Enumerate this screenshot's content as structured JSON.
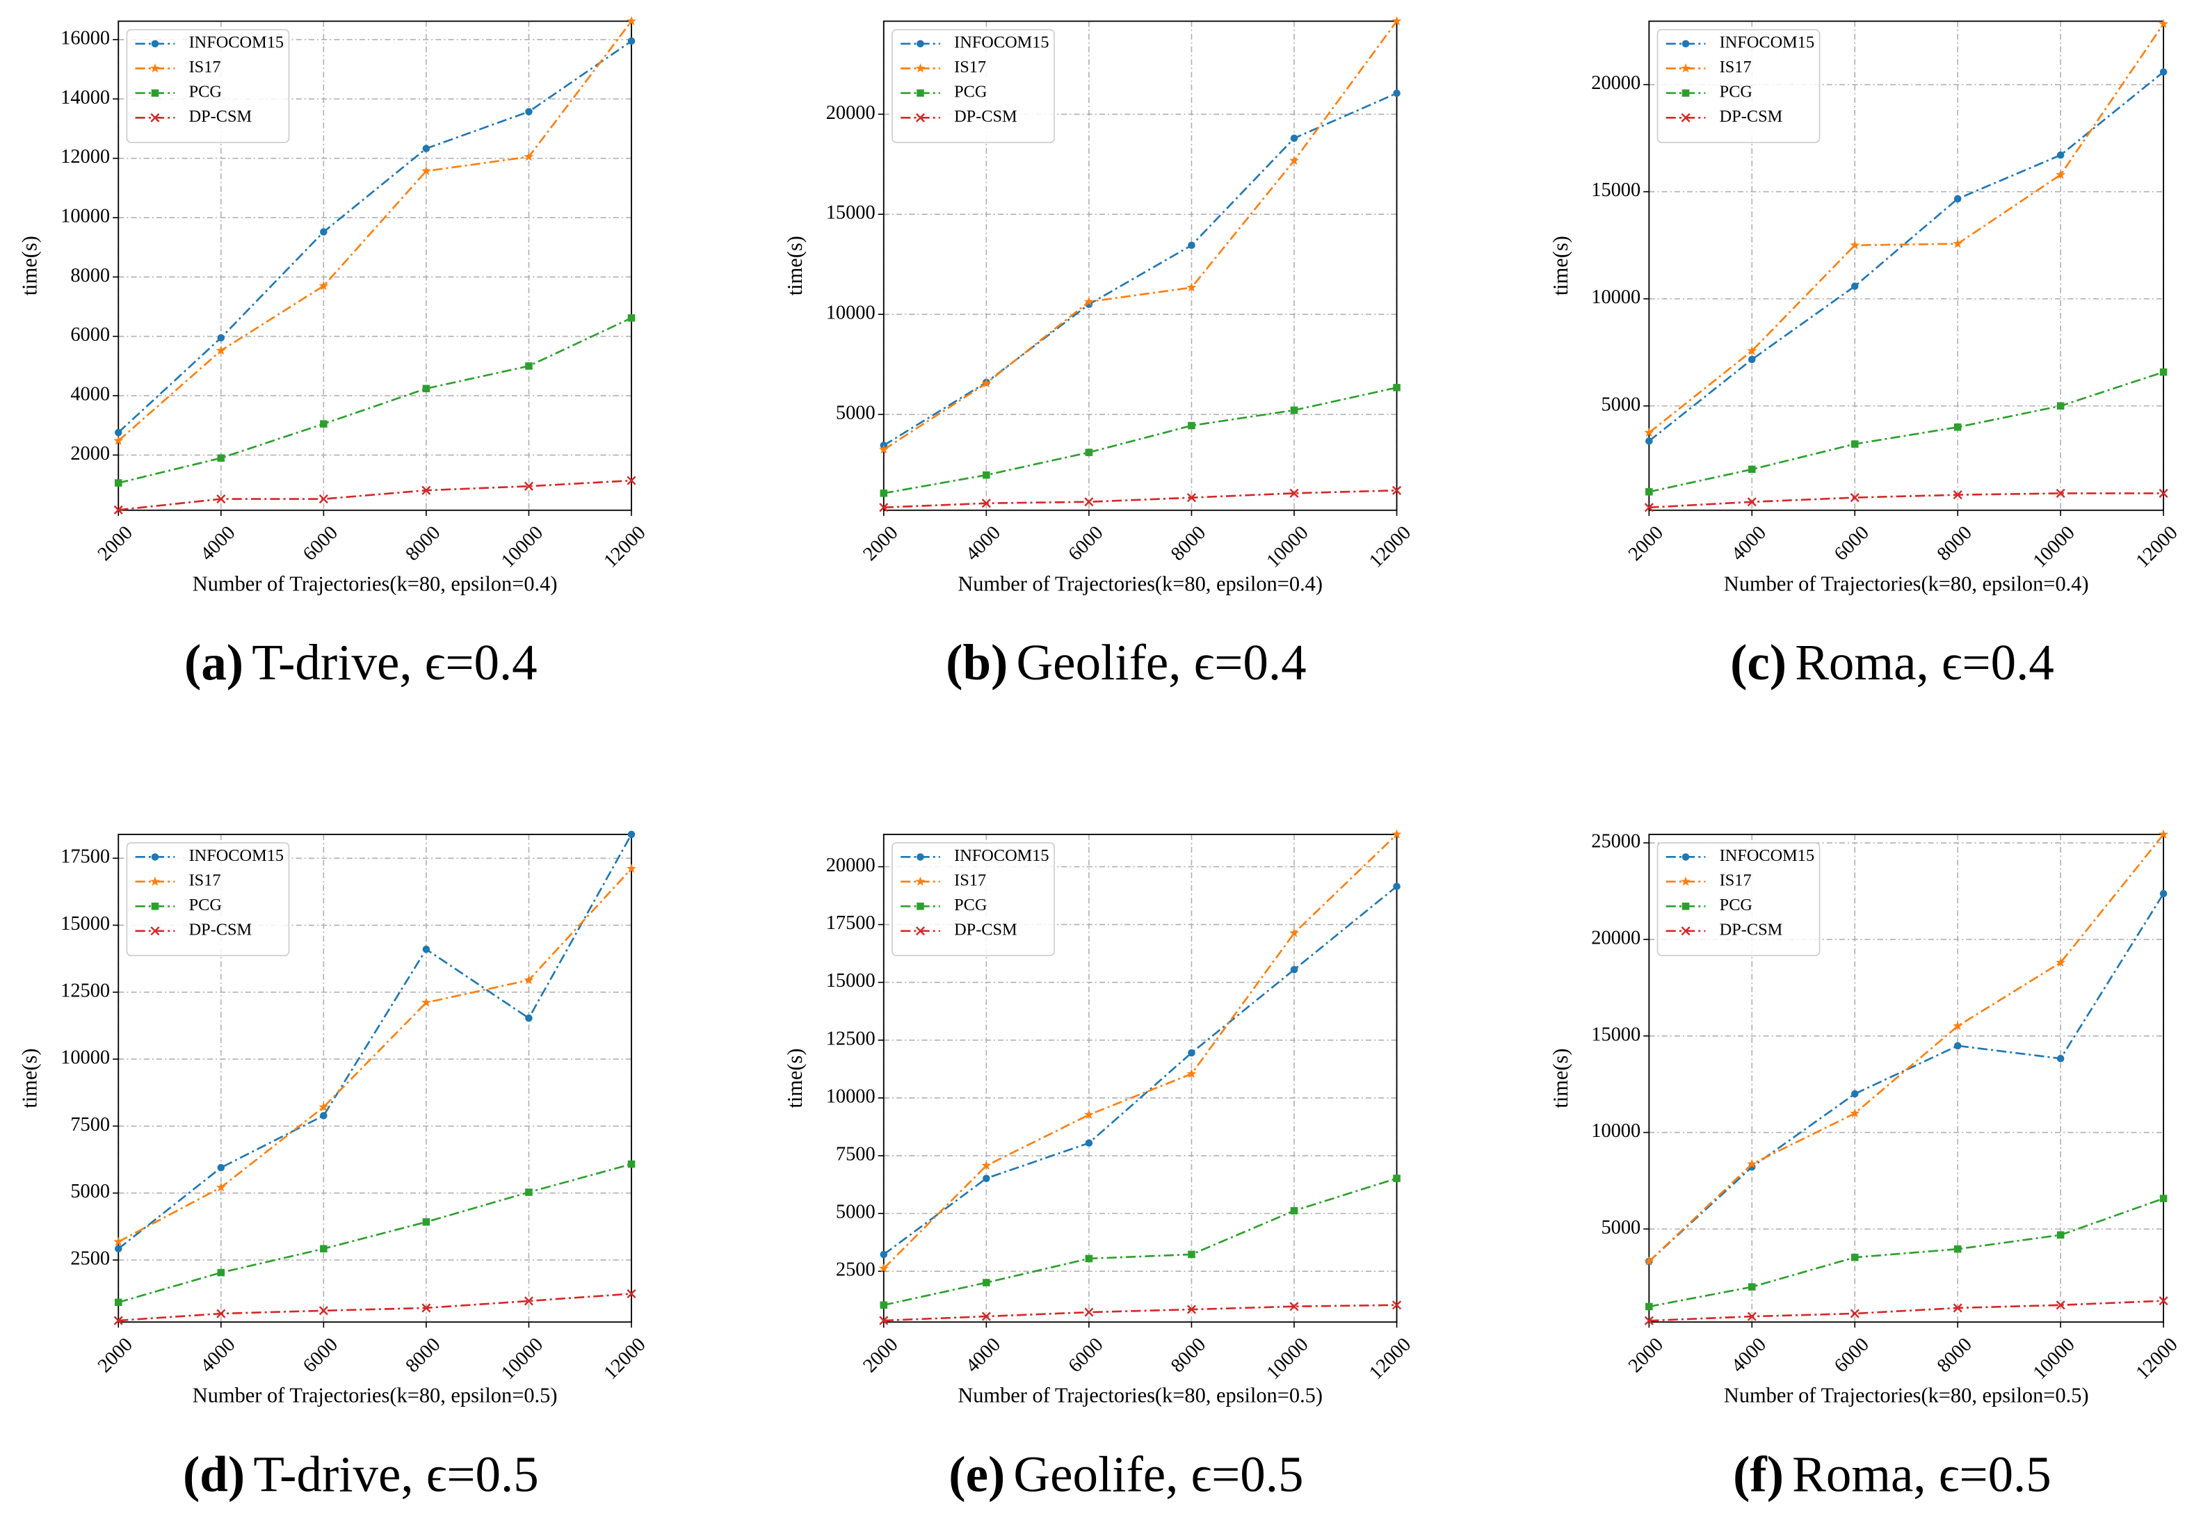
{
  "chart_data": [
    {
      "type": "line",
      "caption_label": "(a)",
      "caption": "T-drive, ϵ=0.4",
      "x_label": "Number of Trajectories(k=80, epsilon=0.4)",
      "y_label": "time(s)",
      "x": [
        2000,
        4000,
        6000,
        8000,
        10000,
        12000
      ],
      "xlim": [
        2000,
        12000
      ],
      "xticks": [
        2000,
        4000,
        6000,
        8000,
        10000,
        12000
      ],
      "ylim": [
        140,
        16620
      ],
      "yticks": [
        2000,
        4000,
        6000,
        8000,
        10000,
        12000,
        14000,
        16000
      ],
      "grid": true,
      "legend": "upper left",
      "series": [
        {
          "name": "INFOCOM15",
          "color": "#1f77b4",
          "values": [
            2760,
            5950,
            9520,
            12330,
            13570,
            15950
          ]
        },
        {
          "name": "IS17",
          "color": "#ff7f0e",
          "values": [
            2480,
            5520,
            7700,
            11570,
            12050,
            16620
          ]
        },
        {
          "name": "PCG",
          "color": "#2ca02c",
          "values": [
            1060,
            1900,
            3050,
            4240,
            5000,
            6620
          ]
        },
        {
          "name": "DP-CSM",
          "color": "#d62728",
          "values": [
            150,
            520,
            520,
            810,
            950,
            1140
          ]
        }
      ]
    },
    {
      "type": "line",
      "caption_label": "(b)",
      "caption": "Geolife, ϵ=0.4",
      "x_label": "Number of Trajectories(k=80, epsilon=0.4)",
      "y_label": "time(s)",
      "x": [
        2000,
        4000,
        6000,
        8000,
        10000,
        12000
      ],
      "xlim": [
        2000,
        12000
      ],
      "xticks": [
        2000,
        4000,
        6000,
        8000,
        10000,
        12000
      ],
      "ylim": [
        210,
        24650
      ],
      "yticks": [
        5000,
        10000,
        15000,
        20000
      ],
      "grid": true,
      "legend": "upper left",
      "series": [
        {
          "name": "INFOCOM15",
          "color": "#1f77b4",
          "values": [
            3450,
            6600,
            10500,
            13450,
            18800,
            21050
          ]
        },
        {
          "name": "IS17",
          "color": "#ff7f0e",
          "values": [
            3240,
            6550,
            10630,
            11340,
            17680,
            24650
          ]
        },
        {
          "name": "PCG",
          "color": "#2ca02c",
          "values": [
            1060,
            1970,
            3100,
            4440,
            5210,
            6340
          ]
        },
        {
          "name": "DP-CSM",
          "color": "#d62728",
          "values": [
            350,
            560,
            630,
            840,
            1060,
            1200
          ]
        }
      ]
    },
    {
      "type": "line",
      "caption_label": "(c)",
      "caption": "Roma, ϵ=0.4",
      "x_label": "Number of Trajectories(k=80, epsilon=0.4)",
      "y_label": "time(s)",
      "x": [
        2000,
        4000,
        6000,
        8000,
        10000,
        12000
      ],
      "xlim": [
        2000,
        12000
      ],
      "xticks": [
        2000,
        4000,
        6000,
        8000,
        10000,
        12000
      ],
      "ylim": [
        130,
        22960
      ],
      "yticks": [
        5000,
        10000,
        15000,
        20000
      ],
      "grid": true,
      "legend": "upper left",
      "series": [
        {
          "name": "INFOCOM15",
          "color": "#1f77b4",
          "values": [
            3360,
            7170,
            10590,
            14670,
            16710,
            20590
          ]
        },
        {
          "name": "IS17",
          "color": "#ff7f0e",
          "values": [
            3750,
            7570,
            12500,
            12570,
            15790,
            22830
          ]
        },
        {
          "name": "PCG",
          "color": "#2ca02c",
          "values": [
            990,
            2040,
            3220,
            4010,
            5000,
            6580
          ]
        },
        {
          "name": "DP-CSM",
          "color": "#d62728",
          "values": [
            260,
            520,
            720,
            850,
            920,
            920
          ]
        }
      ]
    },
    {
      "type": "line",
      "caption_label": "(d)",
      "caption": "T-drive, ϵ=0.5",
      "x_label": "Number of Trajectories(k=80, epsilon=0.5)",
      "y_label": "time(s)",
      "x": [
        2000,
        4000,
        6000,
        8000,
        10000,
        12000
      ],
      "xlim": [
        2000,
        12000
      ],
      "xticks": [
        2000,
        4000,
        6000,
        8000,
        10000,
        12000
      ],
      "ylim": [
        184,
        18390
      ],
      "yticks": [
        2500,
        5000,
        7500,
        10000,
        12500,
        15000,
        17500
      ],
      "grid": true,
      "legend": "upper left",
      "series": [
        {
          "name": "INFOCOM15",
          "color": "#1f77b4",
          "values": [
            2920,
            5950,
            7890,
            14100,
            11530,
            18390
          ]
        },
        {
          "name": "IS17",
          "color": "#ff7f0e",
          "values": [
            3180,
            5210,
            8210,
            12110,
            12950,
            17110
          ]
        },
        {
          "name": "PCG",
          "color": "#2ca02c",
          "values": [
            920,
            2030,
            2920,
            3920,
            5030,
            6080
          ]
        },
        {
          "name": "DP-CSM",
          "color": "#d62728",
          "values": [
            240,
            500,
            610,
            710,
            970,
            1240
          ]
        }
      ]
    },
    {
      "type": "line",
      "caption_label": "(e)",
      "caption": "Geolife, ϵ=0.5",
      "x_label": "Number of Trajectories(k=80, epsilon=0.5)",
      "y_label": "time(s)",
      "x": [
        2000,
        4000,
        6000,
        8000,
        10000,
        12000
      ],
      "xlim": [
        2000,
        12000
      ],
      "xticks": [
        2000,
        4000,
        6000,
        8000,
        10000,
        12000
      ],
      "ylim": [
        305,
        21400
      ],
      "yticks": [
        2500,
        5000,
        7500,
        10000,
        12500,
        15000,
        17500,
        20000
      ],
      "grid": true,
      "legend": "upper left",
      "series": [
        {
          "name": "INFOCOM15",
          "color": "#1f77b4",
          "values": [
            3230,
            6520,
            8050,
            11950,
            15550,
            19150
          ]
        },
        {
          "name": "IS17",
          "color": "#ff7f0e",
          "values": [
            2620,
            7070,
            9270,
            11040,
            17130,
            21400
          ]
        },
        {
          "name": "PCG",
          "color": "#2ca02c",
          "values": [
            1040,
            2010,
            3050,
            3230,
            5120,
            6520
          ]
        },
        {
          "name": "DP-CSM",
          "color": "#d62728",
          "values": [
            370,
            550,
            730,
            850,
            980,
            1040
          ]
        }
      ]
    },
    {
      "type": "line",
      "caption_label": "(f)",
      "caption": "Roma, ϵ=0.5",
      "x_label": "Number of Trajectories(k=80, epsilon=0.5)",
      "y_label": "time(s)",
      "x": [
        2000,
        4000,
        6000,
        8000,
        10000,
        12000
      ],
      "xlim": [
        2000,
        12000
      ],
      "xticks": [
        2000,
        4000,
        6000,
        8000,
        10000,
        12000
      ],
      "ylim": [
        180,
        25440
      ],
      "yticks": [
        5000,
        10000,
        15000,
        20000,
        25000
      ],
      "grid": true,
      "legend": "upper left",
      "series": [
        {
          "name": "INFOCOM15",
          "color": "#1f77b4",
          "values": [
            3320,
            8210,
            12000,
            14490,
            13830,
            22370
          ]
        },
        {
          "name": "IS17",
          "color": "#ff7f0e",
          "values": [
            3320,
            8360,
            10990,
            15510,
            18800,
            25440
          ]
        },
        {
          "name": "PCG",
          "color": "#2ca02c",
          "values": [
            980,
            2000,
            3530,
            3960,
            4690,
            6580
          ]
        },
        {
          "name": "DP-CSM",
          "color": "#d62728",
          "values": [
            250,
            470,
            620,
            910,
            1060,
            1280
          ]
        }
      ]
    }
  ]
}
